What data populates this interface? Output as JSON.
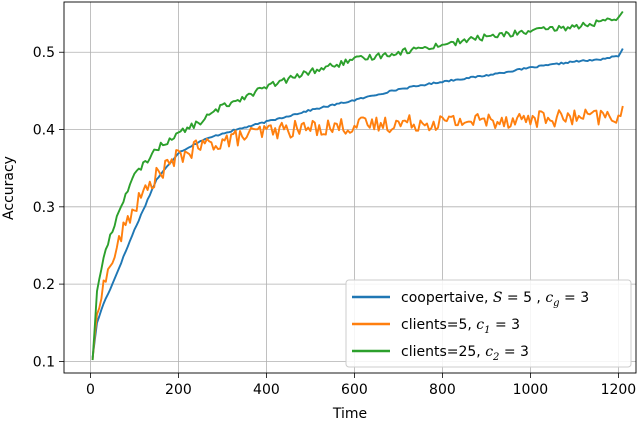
{
  "chart_data": {
    "type": "line",
    "title": "",
    "xlabel": "Time",
    "ylabel": "Accuracy",
    "xlim": [
      -60,
      1240
    ],
    "ylim": [
      0.085,
      0.565
    ],
    "xticks": [
      0,
      200,
      400,
      600,
      800,
      1000,
      1200
    ],
    "yticks": [
      0.1,
      0.2,
      0.3,
      0.4,
      0.5
    ],
    "xtick_labels": [
      "0",
      "200",
      "400",
      "600",
      "800",
      "1000",
      "1200"
    ],
    "ytick_labels": [
      "0.1",
      "0.2",
      "0.3",
      "0.4",
      "0.5"
    ],
    "grid": true,
    "legend_position": "lower-right",
    "series": [
      {
        "name": "coopertaive, S = 5 , c_g = 3",
        "legend": {
          "prefix": "coopertaive, ",
          "v1": "S",
          "eq1": " = 5 , ",
          "v2": "c",
          "sub2": "g",
          "eq2": " = 3"
        },
        "color": "#1f77b4",
        "noise": 0.001,
        "x": [
          5,
          15,
          30,
          50,
          75,
          100,
          150,
          200,
          250,
          300,
          400,
          500,
          600,
          700,
          800,
          900,
          1000,
          1100,
          1150,
          1200,
          1210
        ],
        "y": [
          0.105,
          0.15,
          0.175,
          0.2,
          0.235,
          0.27,
          0.335,
          0.37,
          0.385,
          0.395,
          0.41,
          0.425,
          0.438,
          0.452,
          0.462,
          0.47,
          0.48,
          0.488,
          0.49,
          0.495,
          0.505
        ]
      },
      {
        "name": "clients=5, c_1 = 3",
        "legend": {
          "prefix": "clients=5, ",
          "v1": "",
          "eq1": "",
          "v2": "c",
          "sub2": "1",
          "eq2": " = 3"
        },
        "color": "#ff7f0e",
        "noise": 0.011,
        "x": [
          5,
          15,
          30,
          50,
          75,
          100,
          150,
          200,
          250,
          300,
          400,
          500,
          600,
          700,
          800,
          900,
          1000,
          1100,
          1200,
          1210
        ],
        "y": [
          0.103,
          0.16,
          0.2,
          0.23,
          0.27,
          0.3,
          0.34,
          0.365,
          0.378,
          0.385,
          0.398,
          0.402,
          0.405,
          0.408,
          0.41,
          0.412,
          0.414,
          0.415,
          0.417,
          0.42
        ]
      },
      {
        "name": "clients=25, c_2 = 3",
        "legend": {
          "prefix": "clients=25, ",
          "v1": "",
          "eq1": "",
          "v2": "c",
          "sub2": "2",
          "eq2": " = 3"
        },
        "color": "#2ca02c",
        "noise": 0.004,
        "x": [
          5,
          15,
          30,
          50,
          75,
          100,
          150,
          200,
          250,
          300,
          400,
          500,
          600,
          700,
          800,
          900,
          1000,
          1100,
          1150,
          1200,
          1210
        ],
        "y": [
          0.102,
          0.19,
          0.235,
          0.27,
          0.31,
          0.34,
          0.375,
          0.395,
          0.41,
          0.43,
          0.455,
          0.475,
          0.49,
          0.5,
          0.51,
          0.52,
          0.527,
          0.533,
          0.538,
          0.542,
          0.552
        ]
      }
    ]
  }
}
